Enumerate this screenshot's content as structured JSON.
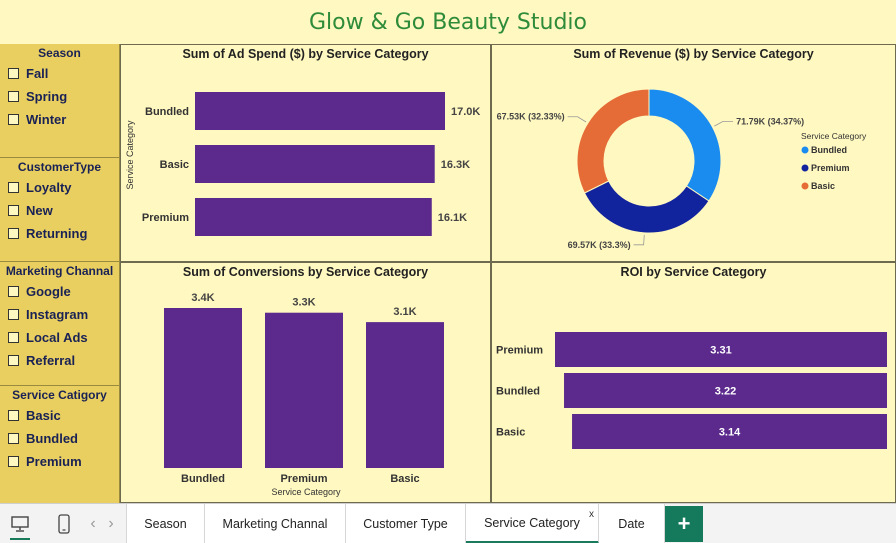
{
  "title": "Glow & Go Beauty Studio",
  "slicers": [
    {
      "header": "Season",
      "options": [
        "Fall",
        "Spring",
        "Winter"
      ]
    },
    {
      "header": "CustomerType",
      "options": [
        "Loyalty",
        "New",
        "Returning"
      ]
    },
    {
      "header": "Marketing Channal",
      "options": [
        "Google",
        "Instagram",
        "Local Ads",
        "Referral"
      ]
    },
    {
      "header": "Service Catigory",
      "options": [
        "Basic",
        "Bundled",
        "Premium"
      ]
    }
  ],
  "charts": {
    "ad_spend": {
      "title": "Sum of Ad Spend ($) by Service Category",
      "ylabel": "Service Category"
    },
    "revenue": {
      "title": "Sum of Revenue ($) by Service Category",
      "legend_title": "Service Category"
    },
    "conversions": {
      "title": "Sum of Conversions by Service Category",
      "xlabel": "Service Category"
    },
    "roi": {
      "title": "ROI by Service Category"
    }
  },
  "chart_data": [
    {
      "type": "bar",
      "orientation": "horizontal",
      "title": "Sum of Ad Spend ($) by Service Category",
      "ylabel": "Service Category",
      "categories": [
        "Bundled",
        "Basic",
        "Premium"
      ],
      "values": [
        17000,
        16300,
        16100
      ],
      "labels": [
        "17.0K",
        "16.3K",
        "16.1K"
      ],
      "xlim": [
        0,
        17000
      ],
      "color": "#5b2a8c"
    },
    {
      "type": "pie",
      "donut": true,
      "title": "Sum of Revenue ($) by Service Category",
      "legend_title": "Service Category",
      "legend": "right",
      "categories": [
        "Bundled",
        "Premium",
        "Basic"
      ],
      "values": [
        71790,
        69570,
        67530
      ],
      "labels": [
        "71.79K (34.37%)",
        "69.57K (33.3%)",
        "67.53K (32.33%)"
      ],
      "colors": [
        "#1a8cf0",
        "#12239e",
        "#e66c37"
      ]
    },
    {
      "type": "bar",
      "orientation": "vertical",
      "title": "Sum of Conversions by Service Category",
      "xlabel": "Service Category",
      "categories": [
        "Bundled",
        "Premium",
        "Basic"
      ],
      "values": [
        3400,
        3300,
        3100
      ],
      "labels": [
        "3.4K",
        "3.3K",
        "3.1K"
      ],
      "ylim": [
        0,
        3400
      ],
      "color": "#5b2a8c"
    },
    {
      "type": "bar",
      "orientation": "horizontal",
      "title": "ROI by Service Category",
      "categories": [
        "Premium",
        "Bundled",
        "Basic"
      ],
      "values": [
        3.31,
        3.22,
        3.14
      ],
      "labels": [
        "3.31",
        "3.22",
        "3.14"
      ],
      "xlim": [
        0,
        3.31
      ],
      "color": "#5b2a8c"
    }
  ],
  "tabs": [
    "Season",
    "Marketing Channal",
    "Customer Type",
    "Service Category",
    "Date"
  ],
  "active_tab": "Service Category",
  "tab_close": "x",
  "add_tab": "+",
  "icons": {
    "desktop": "desktop-icon",
    "mobile": "mobile-icon",
    "prev": "‹",
    "next": "›"
  }
}
